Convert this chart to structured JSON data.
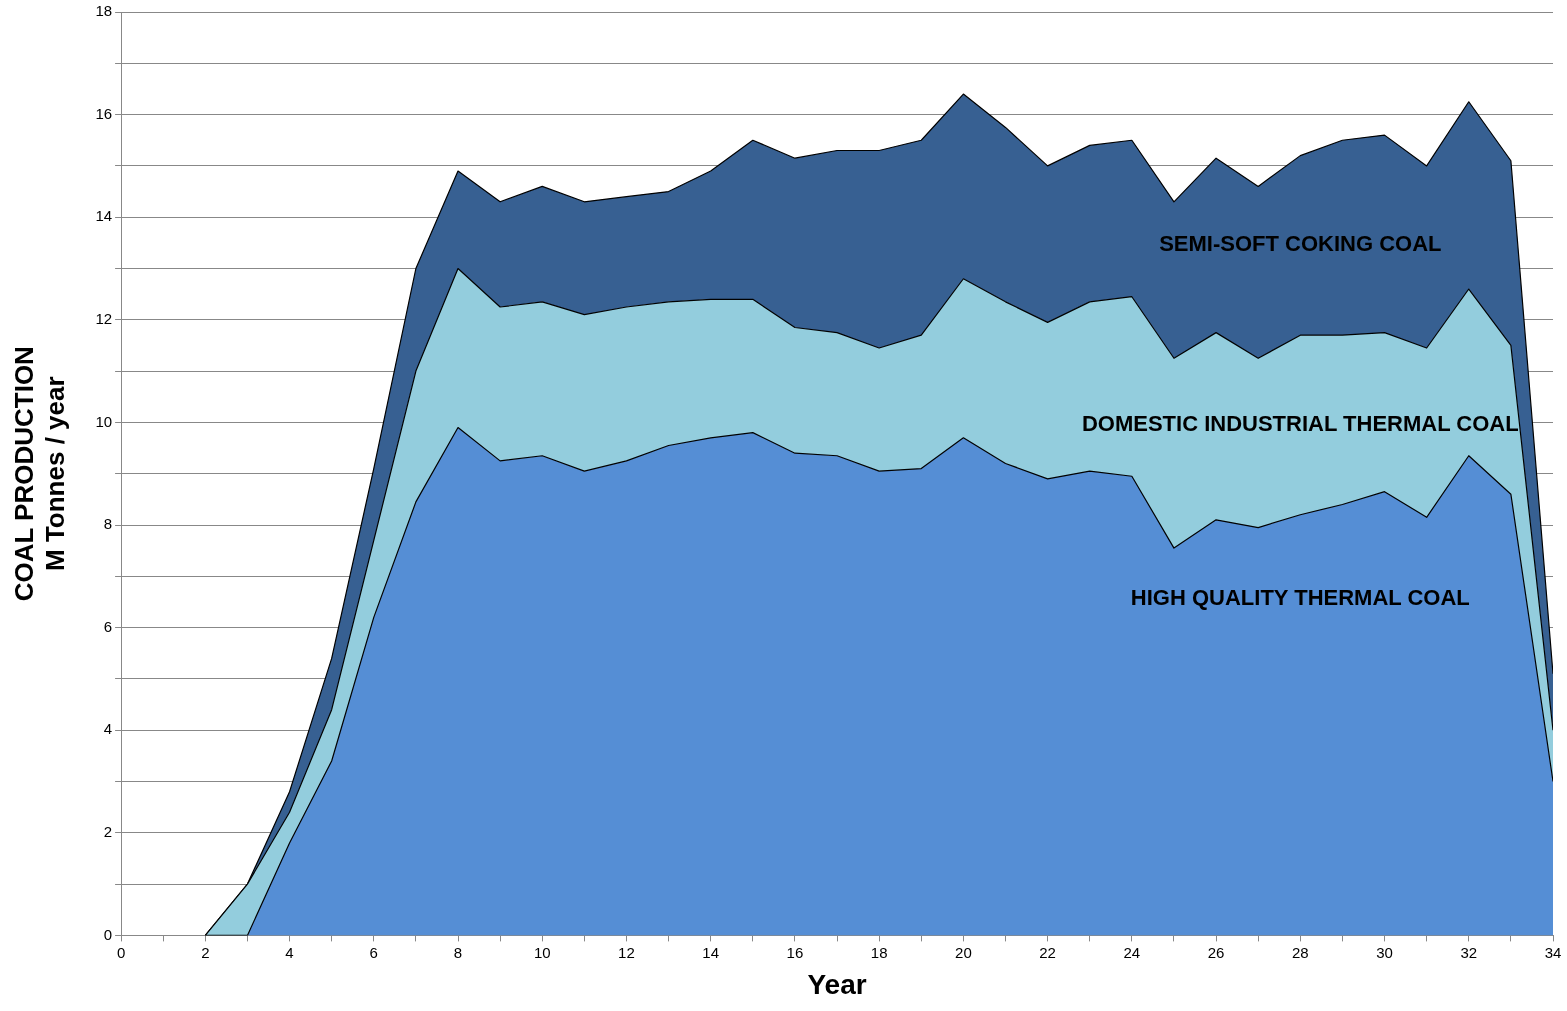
{
  "chart_data": {
    "type": "area",
    "xlabel": "Year",
    "ylabel": "COAL PRODUCTION\nM Tonnes / year",
    "stacked": true,
    "grid": "y",
    "legend": false,
    "marker": "none",
    "x": [
      2,
      3,
      4,
      5,
      6,
      7,
      8,
      9,
      10,
      11,
      12,
      13,
      14,
      15,
      16,
      17,
      18,
      19,
      20,
      21,
      22,
      23,
      24,
      25,
      26,
      27,
      28,
      29,
      30,
      31,
      32,
      33,
      34
    ],
    "xlim": [
      0,
      34
    ],
    "xticks": [
      0,
      {
        "value": 1,
        "label": null
      },
      2,
      {
        "value": 3,
        "label": null
      },
      4,
      {
        "value": 5,
        "label": null
      },
      6,
      {
        "value": 7,
        "label": null
      },
      8,
      {
        "value": 9,
        "label": null
      },
      10,
      {
        "value": 11,
        "label": null
      },
      12,
      {
        "value": 13,
        "label": null
      },
      14,
      {
        "value": 15,
        "label": null
      },
      16,
      {
        "value": 17,
        "label": null
      },
      18,
      {
        "value": 19,
        "label": null
      },
      20,
      {
        "value": 21,
        "label": null
      },
      22,
      {
        "value": 23,
        "label": null
      },
      24,
      {
        "value": 25,
        "label": null
      },
      26,
      {
        "value": 27,
        "label": null
      },
      28,
      {
        "value": 29,
        "label": null
      },
      30,
      {
        "value": 31,
        "label": null
      },
      32,
      {
        "value": 33,
        "label": null
      },
      34
    ],
    "ylim": [
      0,
      18
    ],
    "yticks": [
      0,
      {
        "value": 1,
        "label": null
      },
      2,
      {
        "value": 3,
        "label": null
      },
      4,
      {
        "value": 5,
        "label": null
      },
      6,
      {
        "value": 7,
        "label": null
      },
      8,
      {
        "value": 9,
        "label": null
      },
      10,
      {
        "value": 11,
        "label": null
      },
      12,
      {
        "value": 13,
        "label": null
      },
      14,
      {
        "value": 15,
        "label": null
      },
      16,
      {
        "value": 17,
        "label": null
      },
      18
    ],
    "series": [
      {
        "name": "HIGH QUALITY THERMAL COAL",
        "color": "#558ed5",
        "values": [
          0,
          0,
          1.8,
          3.4,
          6.2,
          8.45,
          9.9,
          9.25,
          9.35,
          9.05,
          9.25,
          9.55,
          9.7,
          9.8,
          9.4,
          9.35,
          9.05,
          9.1,
          9.7,
          9.2,
          8.9,
          9.05,
          8.95,
          7.55,
          8.1,
          7.95,
          8.2,
          8.4,
          8.65,
          8.15,
          9.35,
          8.6,
          3.0
        ]
      },
      {
        "name": "DOMESTIC INDUSTRIAL THERMAL COAL",
        "color": "#93cddd",
        "values": [
          0,
          1.0,
          0.6,
          1.0,
          1.5,
          2.55,
          3.1,
          3.0,
          3.0,
          3.05,
          3.0,
          2.8,
          2.7,
          2.6,
          2.45,
          2.4,
          2.4,
          2.6,
          3.1,
          3.15,
          3.05,
          3.3,
          3.5,
          3.7,
          3.65,
          3.3,
          3.5,
          3.3,
          3.1,
          3.3,
          3.25,
          2.9,
          1.0
        ]
      },
      {
        "name": "SEMI-SOFT COKING COAL",
        "color": "#376092",
        "values": [
          0,
          0,
          0.4,
          1.0,
          1.4,
          2.0,
          1.9,
          2.05,
          2.25,
          2.2,
          2.15,
          2.15,
          2.5,
          3.1,
          3.3,
          3.55,
          3.85,
          3.8,
          3.6,
          3.4,
          3.05,
          3.05,
          3.05,
          3.05,
          3.4,
          3.35,
          3.5,
          3.8,
          3.85,
          3.55,
          3.65,
          3.6,
          1.1
        ]
      }
    ]
  }
}
